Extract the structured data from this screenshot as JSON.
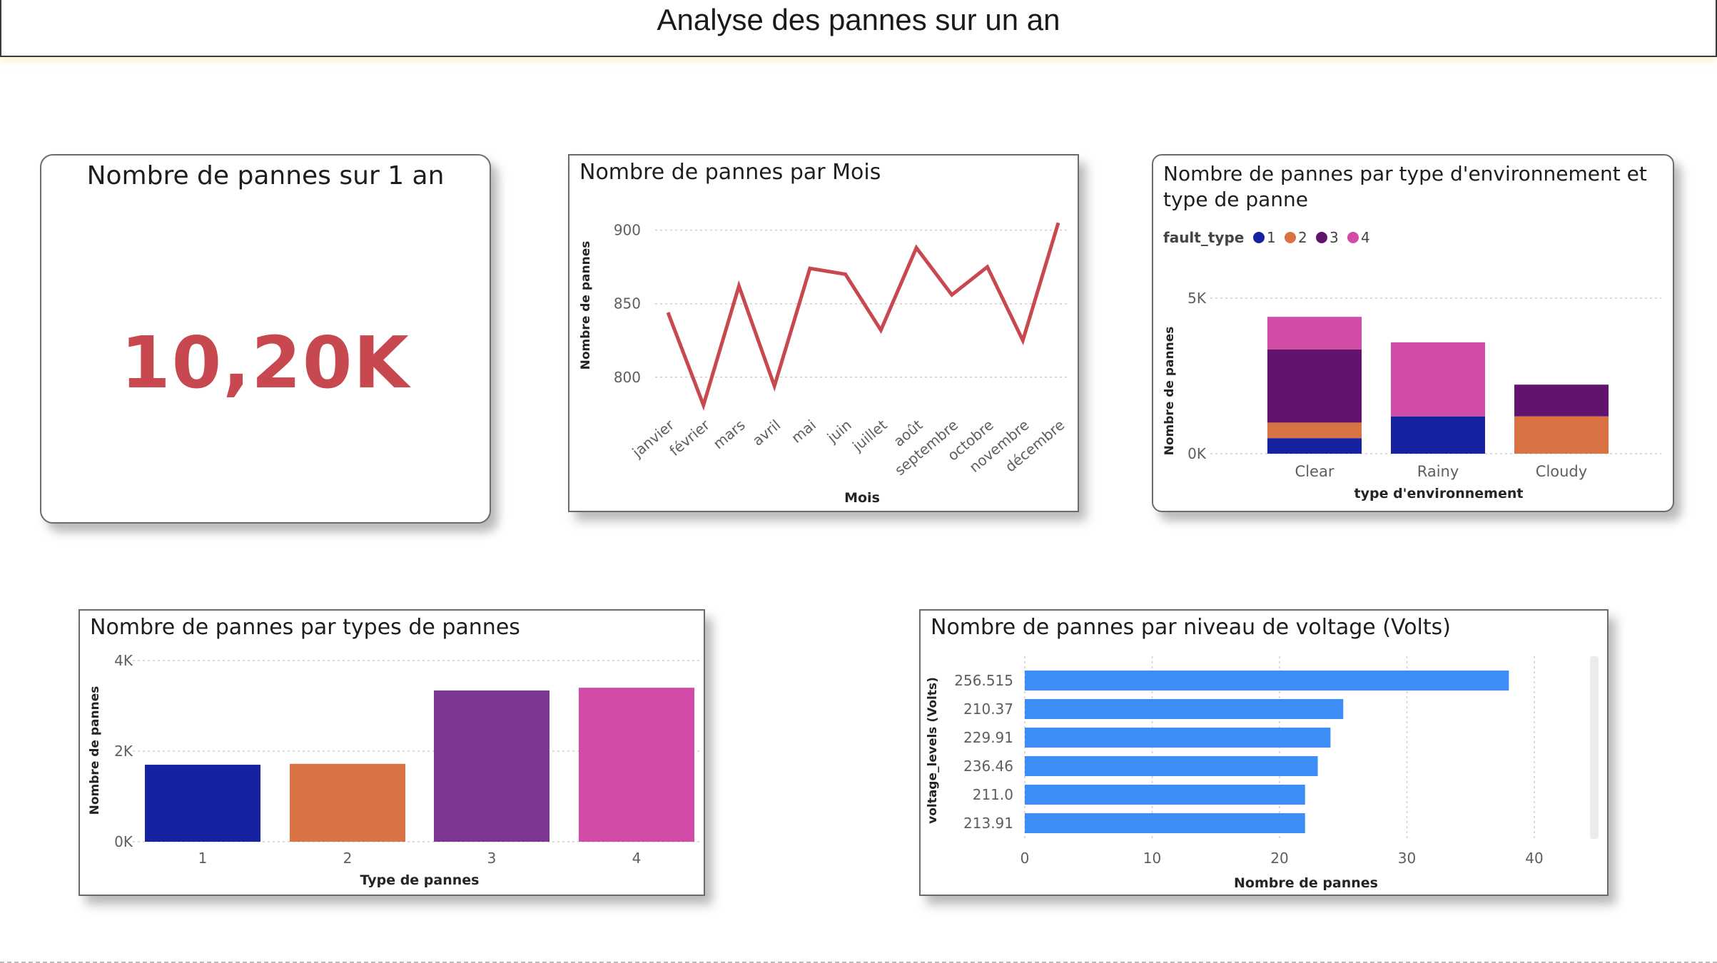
{
  "header": {
    "title": "Analyse des pannes sur un an"
  },
  "kpi": {
    "title": "Nombre de pannes sur 1 an",
    "value": "10,20K",
    "color": "#C8484F"
  },
  "colors": {
    "ft1": "#1722A1",
    "ft2": "#D97344",
    "ft3": "#62136E",
    "ft4": "#D04CA7",
    "line": "#C8484F",
    "hbar": "#3E8CF6",
    "ft3_bar": "#7C3790"
  },
  "chart_data": [
    {
      "id": "monthly",
      "type": "line",
      "title": "Nombre de pannes par Mois",
      "xlabel": "Mois",
      "ylabel": "Nombre de pannes",
      "categories": [
        "janvier",
        "février",
        "mars",
        "avril",
        "mai",
        "juin",
        "juillet",
        "août",
        "septembre",
        "octobre",
        "novembre",
        "décembre"
      ],
      "values": [
        844,
        781,
        862,
        794,
        874,
        870,
        832,
        888,
        856,
        875,
        825,
        905
      ],
      "yticks": [
        "800",
        "850",
        "900"
      ],
      "ylim": [
        780,
        910
      ],
      "grid": true
    },
    {
      "id": "env",
      "type": "bar",
      "stacked": true,
      "title": "Nombre de pannes par type d'environnement et type de panne",
      "title_lines": [
        "Nombre de pannes par type d'environnement et",
        "type de panne"
      ],
      "legend_title": "fault_type",
      "xlabel": "type d'environnement",
      "ylabel": "Nombre de pannes",
      "categories": [
        "Clear",
        "Rainy",
        "Cloudy"
      ],
      "series": [
        {
          "name": "1",
          "values": [
            500,
            1200,
            0
          ]
        },
        {
          "name": "2",
          "values": [
            500,
            0,
            1200
          ]
        },
        {
          "name": "3",
          "values": [
            2350,
            0,
            1020
          ]
        },
        {
          "name": "4",
          "values": [
            1050,
            2380,
            0
          ]
        }
      ],
      "yticks": [
        "0K",
        "5K"
      ],
      "ylim": [
        0,
        5000
      ],
      "legend_position": "top-left"
    },
    {
      "id": "faulttype",
      "type": "bar",
      "title": "Nombre de pannes par types de pannes",
      "xlabel": "Type de pannes",
      "ylabel": "Nombre de pannes",
      "categories": [
        "1",
        "2",
        "3",
        "4"
      ],
      "values": [
        1700,
        1720,
        3340,
        3400
      ],
      "yticks": [
        "0K",
        "2K",
        "4K"
      ],
      "ylim": [
        0,
        4000
      ]
    },
    {
      "id": "voltage",
      "type": "bar",
      "orientation": "horizontal",
      "title": "Nombre de pannes par niveau de voltage (Volts)",
      "xlabel": "Nombre de pannes",
      "ylabel": "voltage_levels (Volts)",
      "categories": [
        "256.515",
        "210.37",
        "229.91",
        "236.46",
        "211.0",
        "213.91"
      ],
      "values": [
        38,
        25,
        24,
        23,
        22,
        22
      ],
      "xticks": [
        "0",
        "10",
        "20",
        "30",
        "40"
      ],
      "xlim": [
        0,
        40
      ]
    }
  ]
}
